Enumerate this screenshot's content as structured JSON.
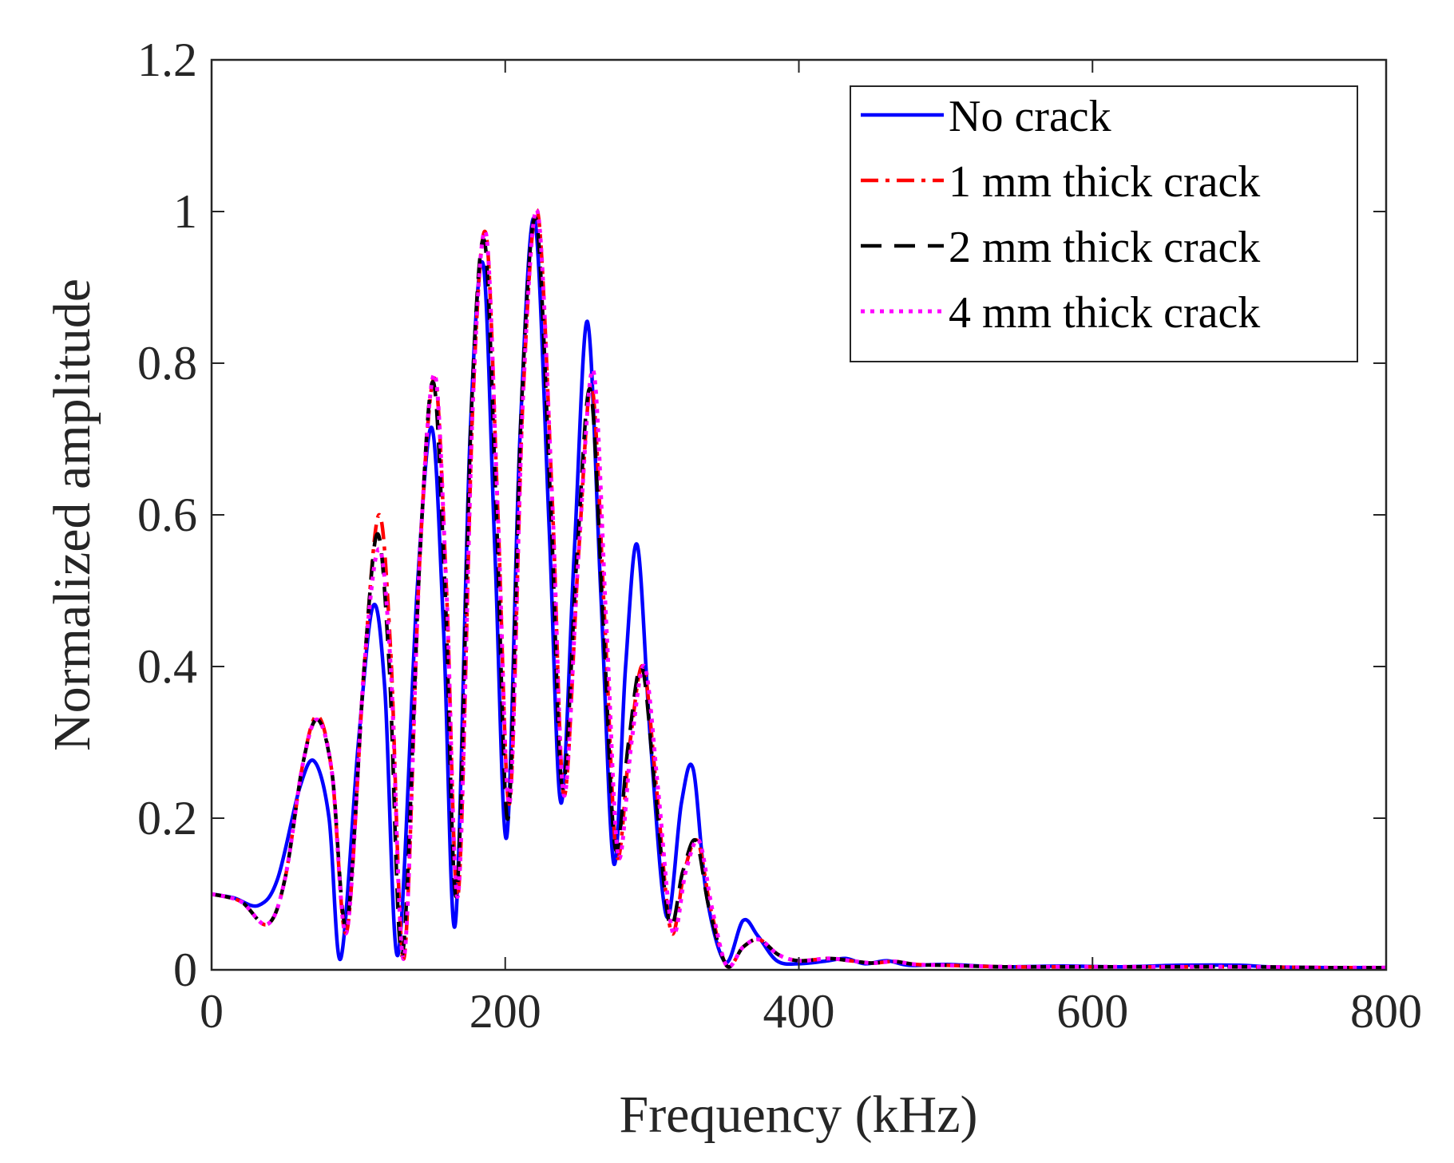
{
  "chart_data": {
    "type": "line",
    "title": "",
    "xlabel": "Frequency (kHz)",
    "ylabel": "Normalized amplitude",
    "xlim": [
      0,
      800
    ],
    "ylim": [
      0,
      1.2
    ],
    "xticks": [
      0,
      200,
      400,
      600,
      800
    ],
    "yticks": [
      0,
      0.2,
      0.4,
      0.6,
      0.8,
      1,
      1.2
    ],
    "xtick_labels": [
      "0",
      "200",
      "400",
      "600",
      "800"
    ],
    "ytick_labels": [
      "0",
      "0.2",
      "0.4",
      "0.6",
      "0.8",
      "1",
      "1.2"
    ],
    "grid": false,
    "legend_position": "top-right",
    "series": [
      {
        "name": "No crack",
        "color": "#0000ff",
        "dash": "solid",
        "x": [
          0,
          15,
          32,
          45,
          60,
          70,
          80,
          88,
          100,
          110,
          118,
          127,
          140,
          150,
          158,
          166,
          176,
          185,
          193,
          201,
          210,
          220,
          230,
          238,
          247,
          256,
          265,
          274,
          282,
          290,
          299,
          310,
          320,
          328,
          337,
          350,
          362,
          372,
          385,
          400,
          420,
          432,
          445,
          460,
          475,
          500,
          540,
          580,
          620,
          660,
          700,
          720,
          760,
          800
        ],
        "values": [
          0.1,
          0.095,
          0.085,
          0.12,
          0.24,
          0.275,
          0.2,
          0.015,
          0.3,
          0.48,
          0.37,
          0.02,
          0.5,
          0.715,
          0.45,
          0.06,
          0.7,
          0.93,
          0.55,
          0.175,
          0.7,
          0.99,
          0.58,
          0.22,
          0.55,
          0.855,
          0.5,
          0.14,
          0.4,
          0.56,
          0.3,
          0.07,
          0.22,
          0.265,
          0.1,
          0.01,
          0.065,
          0.045,
          0.012,
          0.008,
          0.012,
          0.015,
          0.008,
          0.012,
          0.006,
          0.007,
          0.004,
          0.005,
          0.004,
          0.006,
          0.006,
          0.004,
          0.003,
          0.003
        ]
      },
      {
        "name": "1 mm thick crack",
        "color": "#ff0000",
        "dash": "dashdot",
        "x": [
          0,
          20,
          38,
          50,
          62,
          72,
          82,
          92,
          104,
          114,
          122,
          131,
          142,
          152,
          160,
          168,
          178,
          187,
          195,
          203,
          212,
          222,
          232,
          240,
          250,
          259,
          268,
          276,
          285,
          294,
          303,
          313,
          322,
          331,
          340,
          351,
          362,
          373,
          386,
          400,
          420,
          435,
          450,
          465,
          480,
          500,
          540,
          580,
          620,
          660,
          700,
          760,
          800
        ],
        "values": [
          0.1,
          0.09,
          0.06,
          0.12,
          0.27,
          0.335,
          0.26,
          0.05,
          0.4,
          0.6,
          0.42,
          0.015,
          0.55,
          0.78,
          0.5,
          0.1,
          0.75,
          0.97,
          0.6,
          0.22,
          0.75,
          1.0,
          0.62,
          0.23,
          0.55,
          0.77,
          0.45,
          0.15,
          0.3,
          0.4,
          0.24,
          0.05,
          0.13,
          0.17,
          0.08,
          0.005,
          0.03,
          0.04,
          0.02,
          0.012,
          0.015,
          0.012,
          0.009,
          0.011,
          0.007,
          0.006,
          0.004,
          0.004,
          0.004,
          0.004,
          0.004,
          0.003,
          0.003
        ]
      },
      {
        "name": "2 mm thick crack",
        "color": "#000000",
        "dash": "dashed",
        "x": [
          0,
          20,
          38,
          50,
          62,
          72,
          82,
          92,
          104,
          113,
          121,
          130,
          142,
          151,
          159,
          167,
          177,
          186,
          194,
          202,
          211,
          221,
          231,
          239,
          249,
          258,
          267,
          275,
          284,
          293,
          302,
          312,
          321,
          330,
          339,
          351,
          362,
          373,
          386,
          400,
          420,
          435,
          450,
          465,
          480,
          500,
          540,
          580,
          620,
          660,
          700,
          760,
          800
        ],
        "values": [
          0.1,
          0.09,
          0.06,
          0.12,
          0.27,
          0.33,
          0.26,
          0.06,
          0.4,
          0.575,
          0.4,
          0.02,
          0.55,
          0.775,
          0.5,
          0.1,
          0.74,
          0.96,
          0.6,
          0.2,
          0.74,
          0.99,
          0.61,
          0.24,
          0.55,
          0.765,
          0.45,
          0.16,
          0.3,
          0.4,
          0.24,
          0.06,
          0.13,
          0.17,
          0.08,
          0.005,
          0.03,
          0.04,
          0.02,
          0.012,
          0.015,
          0.012,
          0.009,
          0.011,
          0.007,
          0.006,
          0.004,
          0.004,
          0.004,
          0.004,
          0.004,
          0.003,
          0.003
        ]
      },
      {
        "name": "4 mm thick crack",
        "color": "#ff00ff",
        "dash": "dotted",
        "x": [
          0,
          20,
          38,
          50,
          62,
          72,
          82,
          92,
          104,
          114,
          122,
          131,
          142,
          152,
          160,
          168,
          178,
          187,
          195,
          203,
          212,
          222,
          232,
          240,
          250,
          260,
          269,
          277,
          286,
          295,
          304,
          314,
          323,
          332,
          341,
          351,
          362,
          373,
          386,
          400,
          420,
          435,
          450,
          465,
          480,
          500,
          540,
          580,
          620,
          660,
          700,
          760,
          800
        ],
        "values": [
          0.1,
          0.09,
          0.06,
          0.12,
          0.27,
          0.33,
          0.26,
          0.05,
          0.4,
          0.555,
          0.4,
          0.015,
          0.55,
          0.785,
          0.5,
          0.1,
          0.75,
          0.97,
          0.6,
          0.22,
          0.75,
          1.0,
          0.62,
          0.23,
          0.55,
          0.79,
          0.45,
          0.15,
          0.3,
          0.4,
          0.24,
          0.05,
          0.13,
          0.17,
          0.08,
          0.005,
          0.03,
          0.04,
          0.02,
          0.012,
          0.015,
          0.012,
          0.009,
          0.011,
          0.007,
          0.006,
          0.004,
          0.004,
          0.004,
          0.004,
          0.004,
          0.003,
          0.003
        ]
      }
    ]
  }
}
